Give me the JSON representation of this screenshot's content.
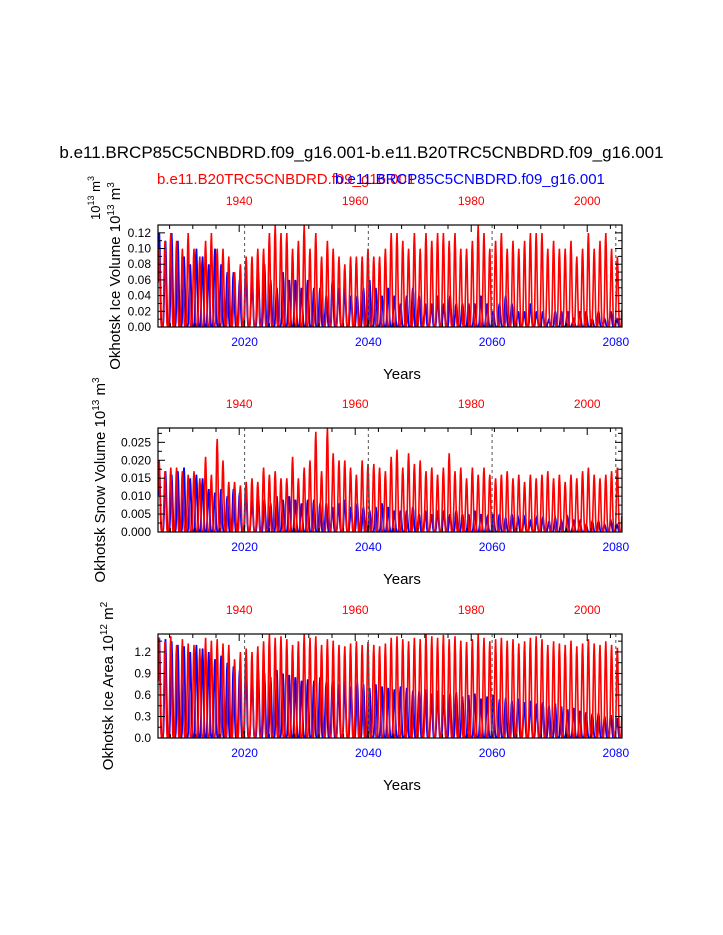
{
  "title": "b.e11.BRCP85C5CNBDRD.f09_g16.001-b.e11.B20TRC5CNBDRD.f09_g16.001",
  "legend": {
    "red": "b.e11.B20TRC5CNBDRD.f09_g16.001",
    "blue": "b.e11.BRCP85C5CNBDRD.f09_g16.001"
  },
  "colors": {
    "red": "#ff0000",
    "blue": "#0000ff",
    "axis": "#000000",
    "dash": "#555555"
  },
  "chart_data": [
    {
      "type": "line",
      "ylabel": "Okhotsk Ice Volume 10",
      "ylabel_exp": "13",
      "ylabel_unit": " m",
      "ylabel_unit_exp": "3",
      "units_top": "10",
      "units_top_exp": "13",
      "units_top_unit": " m",
      "units_top_unit_exp": "3",
      "xlabel": "Years",
      "ylim": [
        0,
        0.13
      ],
      "yticks": [
        "0.00",
        "0.02",
        "0.04",
        "0.06",
        "0.08",
        "0.10",
        "0.12"
      ],
      "ytick_values": [
        0,
        0.02,
        0.04,
        0.06,
        0.08,
        0.1,
        0.12
      ],
      "bottom_axis": {
        "range": [
          2006,
          2081
        ],
        "ticks": [
          2020,
          2040,
          2060,
          2080
        ],
        "labels": [
          "2020",
          "2040",
          "2060",
          "2080"
        ]
      },
      "top_axis": {
        "range": [
          1926,
          2006
        ],
        "ticks": [
          1940,
          1960,
          1980,
          2000
        ],
        "labels": [
          "1940",
          "1960",
          "1980",
          "2000"
        ]
      },
      "series": [
        {
          "name": "b.e11.B20TRC5CNBDRD.f09_g16.001",
          "color": "red",
          "axis": "top",
          "annual_max": [
            0.1,
            0.11,
            0.12,
            0.11,
            0.1,
            0.12,
            0.1,
            0.09,
            0.11,
            0.12,
            0.1,
            0.1,
            0.09,
            0.07,
            0.08,
            0.09,
            0.09,
            0.1,
            0.1,
            0.12,
            0.13,
            0.12,
            0.12,
            0.1,
            0.11,
            0.13,
            0.1,
            0.12,
            0.09,
            0.11,
            0.1,
            0.09,
            0.08,
            0.09,
            0.09,
            0.09,
            0.1,
            0.09,
            0.09,
            0.1,
            0.12,
            0.12,
            0.11,
            0.1,
            0.12,
            0.1,
            0.12,
            0.11,
            0.12,
            0.12,
            0.11,
            0.12,
            0.1,
            0.1,
            0.11,
            0.13,
            0.12,
            0.1,
            0.11,
            0.12,
            0.1,
            0.11,
            0.1,
            0.11,
            0.12,
            0.12,
            0.12,
            0.1,
            0.11,
            0.1,
            0.1,
            0.11,
            0.09,
            0.1,
            0.12,
            0.1,
            0.11,
            0.12,
            0.1,
            0.09
          ]
        },
        {
          "name": "b.e11.BRCP85C5CNBDRD.f09_g16.001",
          "color": "blue",
          "axis": "bottom",
          "annual_max": [
            0.12,
            0.11,
            0.12,
            0.11,
            0.09,
            0.08,
            0.1,
            0.09,
            0.08,
            0.1,
            0.08,
            0.07,
            0.07,
            0.06,
            0.08,
            0.06,
            0.07,
            0.08,
            0.06,
            0.05,
            0.07,
            0.06,
            0.06,
            0.05,
            0.06,
            0.05,
            0.05,
            0.04,
            0.06,
            0.05,
            0.05,
            0.04,
            0.04,
            0.05,
            0.06,
            0.05,
            0.04,
            0.05,
            0.04,
            0.03,
            0.04,
            0.05,
            0.04,
            0.03,
            0.03,
            0.04,
            0.03,
            0.04,
            0.03,
            0.03,
            0.03,
            0.03,
            0.04,
            0.03,
            0.02,
            0.03,
            0.04,
            0.03,
            0.02,
            0.02,
            0.03,
            0.02,
            0.02,
            0.01,
            0.02,
            0.02,
            0.02,
            0.01,
            0.02,
            0.02,
            0.01,
            0.02,
            0.01,
            0.02,
            0.01
          ]
        }
      ]
    },
    {
      "type": "line",
      "ylabel": "Okhotsk Snow Volume 10",
      "ylabel_exp": "13",
      "ylabel_unit": " m",
      "ylabel_unit_exp": "3",
      "xlabel": "Years",
      "ylim": [
        0,
        0.029
      ],
      "yticks": [
        "0.000",
        "0.005",
        "0.010",
        "0.015",
        "0.020",
        "0.025"
      ],
      "ytick_values": [
        0,
        0.005,
        0.01,
        0.015,
        0.02,
        0.025
      ],
      "bottom_axis": {
        "range": [
          2006,
          2081
        ],
        "ticks": [
          2020,
          2040,
          2060,
          2080
        ],
        "labels": [
          "2020",
          "2040",
          "2060",
          "2080"
        ]
      },
      "top_axis": {
        "range": [
          1926,
          2006
        ],
        "ticks": [
          1940,
          1960,
          1980,
          2000
        ],
        "labels": [
          "1940",
          "1960",
          "1980",
          "2000"
        ]
      },
      "series": [
        {
          "name": "b.e11.B20TRC5CNBDRD.f09_g16.001",
          "color": "red",
          "axis": "top",
          "annual_max": [
            0.02,
            0.017,
            0.018,
            0.018,
            0.017,
            0.016,
            0.017,
            0.015,
            0.021,
            0.016,
            0.026,
            0.02,
            0.014,
            0.014,
            0.013,
            0.014,
            0.015,
            0.014,
            0.018,
            0.016,
            0.017,
            0.015,
            0.015,
            0.021,
            0.015,
            0.018,
            0.02,
            0.028,
            0.017,
            0.029,
            0.022,
            0.02,
            0.02,
            0.018,
            0.016,
            0.02,
            0.019,
            0.019,
            0.018,
            0.017,
            0.021,
            0.023,
            0.018,
            0.022,
            0.019,
            0.02,
            0.017,
            0.018,
            0.016,
            0.018,
            0.022,
            0.017,
            0.018,
            0.015,
            0.018,
            0.016,
            0.018,
            0.016,
            0.015,
            0.016,
            0.017,
            0.015,
            0.016,
            0.014,
            0.016,
            0.015,
            0.016,
            0.017,
            0.015,
            0.016,
            0.014,
            0.016,
            0.015,
            0.017,
            0.018,
            0.016,
            0.015,
            0.016,
            0.017,
            0.018
          ]
        },
        {
          "name": "b.e11.BRCP85C5CNBDRD.f09_g16.001",
          "color": "blue",
          "axis": "bottom",
          "annual_max": [
            0.018,
            0.017,
            0.016,
            0.017,
            0.018,
            0.015,
            0.016,
            0.015,
            0.012,
            0.011,
            0.012,
            0.01,
            0.012,
            0.011,
            0.013,
            0.009,
            0.01,
            0.009,
            0.008,
            0.01,
            0.009,
            0.01,
            0.009,
            0.008,
            0.009,
            0.009,
            0.008,
            0.008,
            0.007,
            0.008,
            0.009,
            0.007,
            0.008,
            0.007,
            0.006,
            0.007,
            0.008,
            0.007,
            0.006,
            0.006,
            0.006,
            0.007,
            0.005,
            0.006,
            0.005,
            0.006,
            0.006,
            0.005,
            0.006,
            0.005,
            0.005,
            0.006,
            0.005,
            0.004,
            0.005,
            0.005,
            0.004,
            0.005,
            0.004,
            0.004,
            0.003,
            0.004,
            0.004,
            0.003,
            0.004,
            0.003,
            0.004,
            0.003,
            0.003,
            0.002,
            0.003,
            0.003,
            0.002,
            0.003,
            0.002
          ]
        }
      ]
    },
    {
      "type": "line",
      "ylabel": "Okhotsk Ice Area 10",
      "ylabel_exp": "12",
      "ylabel_unit": " m",
      "ylabel_unit_exp": "2",
      "xlabel": "Years",
      "ylim": [
        0,
        1.45
      ],
      "yticks": [
        "0.0",
        "0.3",
        "0.6",
        "0.9",
        "1.2"
      ],
      "ytick_values": [
        0,
        0.3,
        0.6,
        0.9,
        1.2
      ],
      "bottom_axis": {
        "range": [
          2006,
          2081
        ],
        "ticks": [
          2020,
          2040,
          2060,
          2080
        ],
        "labels": [
          "2020",
          "2040",
          "2060",
          "2080"
        ]
      },
      "top_axis": {
        "range": [
          1926,
          2006
        ],
        "ticks": [
          1940,
          1960,
          1980,
          2000
        ],
        "labels": [
          "1940",
          "1960",
          "1980",
          "2000"
        ]
      },
      "series": [
        {
          "name": "b.e11.B20TRC5CNBDRD.f09_g16.001",
          "color": "red",
          "axis": "top",
          "annual_max": [
            1.4,
            1.35,
            1.42,
            1.3,
            1.38,
            1.32,
            1.3,
            1.25,
            1.4,
            1.36,
            1.38,
            1.32,
            1.3,
            1.1,
            1.2,
            1.25,
            1.2,
            1.28,
            1.35,
            1.45,
            1.4,
            1.42,
            1.38,
            1.3,
            1.35,
            1.45,
            1.4,
            1.42,
            1.3,
            1.38,
            1.36,
            1.3,
            1.28,
            1.32,
            1.35,
            1.3,
            1.34,
            1.3,
            1.28,
            1.32,
            1.4,
            1.42,
            1.38,
            1.35,
            1.4,
            1.38,
            1.45,
            1.42,
            1.4,
            1.44,
            1.38,
            1.42,
            1.36,
            1.34,
            1.38,
            1.45,
            1.4,
            1.35,
            1.38,
            1.4,
            1.36,
            1.38,
            1.32,
            1.35,
            1.4,
            1.42,
            1.38,
            1.3,
            1.35,
            1.32,
            1.3,
            1.36,
            1.28,
            1.32,
            1.38,
            1.32,
            1.3,
            1.35,
            1.3,
            1.26
          ]
        },
        {
          "name": "b.e11.BRCP85C5CNBDRD.f09_g16.001",
          "color": "blue",
          "axis": "bottom",
          "annual_max": [
            1.4,
            1.38,
            1.35,
            1.3,
            1.28,
            1.2,
            1.3,
            1.25,
            1.2,
            1.1,
            1.15,
            1.05,
            1.0,
            0.95,
            1.1,
            0.9,
            0.95,
            0.9,
            0.85,
            0.95,
            0.9,
            0.88,
            0.85,
            0.8,
            0.82,
            0.8,
            0.85,
            0.78,
            0.8,
            0.75,
            0.8,
            0.72,
            0.78,
            0.75,
            0.7,
            0.75,
            0.72,
            0.7,
            0.68,
            0.72,
            0.7,
            0.66,
            0.65,
            0.68,
            0.62,
            0.66,
            0.6,
            0.62,
            0.64,
            0.58,
            0.6,
            0.62,
            0.55,
            0.58,
            0.6,
            0.54,
            0.56,
            0.52,
            0.55,
            0.5,
            0.52,
            0.48,
            0.5,
            0.45,
            0.48,
            0.44,
            0.4,
            0.42,
            0.38,
            0.36,
            0.34,
            0.35,
            0.3,
            0.32,
            0.28
          ]
        }
      ]
    }
  ]
}
